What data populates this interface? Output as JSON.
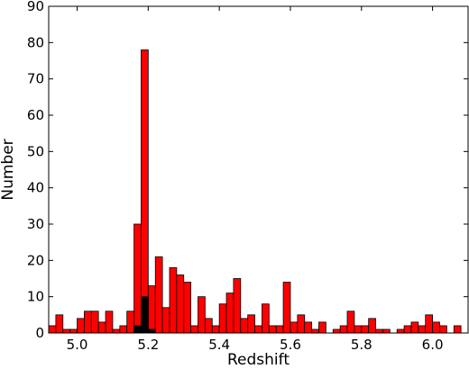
{
  "chart_data": {
    "type": "bar",
    "title": "",
    "xlabel": "Redshift",
    "ylabel": "Number",
    "xlim": [
      4.92,
      6.1
    ],
    "ylim": [
      0,
      90
    ],
    "bin_width": 0.02,
    "grid": false,
    "xticks": [
      5.0,
      5.2,
      5.4,
      5.6,
      5.8,
      6.0
    ],
    "xtick_labels": [
      "5.0",
      "5.2",
      "5.4",
      "5.6",
      "5.8",
      "6.0"
    ],
    "yticks": [
      0,
      10,
      20,
      30,
      40,
      50,
      60,
      70,
      80,
      90
    ],
    "ytick_labels": [
      "0",
      "10",
      "20",
      "30",
      "40",
      "50",
      "60",
      "70",
      "80",
      "90"
    ],
    "series": [
      {
        "color": "#ff0000",
        "bins": [
          {
            "x": 4.92,
            "y": 2
          },
          {
            "x": 4.94,
            "y": 5
          },
          {
            "x": 4.96,
            "y": 1
          },
          {
            "x": 4.98,
            "y": 1
          },
          {
            "x": 5.0,
            "y": 4
          },
          {
            "x": 5.02,
            "y": 6
          },
          {
            "x": 5.04,
            "y": 6
          },
          {
            "x": 5.06,
            "y": 3
          },
          {
            "x": 5.08,
            "y": 6
          },
          {
            "x": 5.1,
            "y": 1
          },
          {
            "x": 5.12,
            "y": 2
          },
          {
            "x": 5.14,
            "y": 6
          },
          {
            "x": 5.16,
            "y": 30
          },
          {
            "x": 5.18,
            "y": 78
          },
          {
            "x": 5.2,
            "y": 13
          },
          {
            "x": 5.22,
            "y": 21
          },
          {
            "x": 5.24,
            "y": 7
          },
          {
            "x": 5.26,
            "y": 18
          },
          {
            "x": 5.28,
            "y": 16
          },
          {
            "x": 5.3,
            "y": 14
          },
          {
            "x": 5.32,
            "y": 2
          },
          {
            "x": 5.34,
            "y": 10
          },
          {
            "x": 5.36,
            "y": 4
          },
          {
            "x": 5.38,
            "y": 2
          },
          {
            "x": 5.4,
            "y": 8
          },
          {
            "x": 5.42,
            "y": 11
          },
          {
            "x": 5.44,
            "y": 15
          },
          {
            "x": 5.46,
            "y": 4
          },
          {
            "x": 5.48,
            "y": 5
          },
          {
            "x": 5.5,
            "y": 2
          },
          {
            "x": 5.52,
            "y": 8
          },
          {
            "x": 5.54,
            "y": 2
          },
          {
            "x": 5.56,
            "y": 2
          },
          {
            "x": 5.58,
            "y": 14
          },
          {
            "x": 5.6,
            "y": 3
          },
          {
            "x": 5.62,
            "y": 5
          },
          {
            "x": 5.64,
            "y": 3
          },
          {
            "x": 5.66,
            "y": 1
          },
          {
            "x": 5.68,
            "y": 3
          },
          {
            "x": 5.72,
            "y": 1
          },
          {
            "x": 5.74,
            "y": 2
          },
          {
            "x": 5.76,
            "y": 6
          },
          {
            "x": 5.78,
            "y": 2
          },
          {
            "x": 5.8,
            "y": 2
          },
          {
            "x": 5.82,
            "y": 4
          },
          {
            "x": 5.84,
            "y": 1
          },
          {
            "x": 5.86,
            "y": 1
          },
          {
            "x": 5.9,
            "y": 1
          },
          {
            "x": 5.92,
            "y": 2
          },
          {
            "x": 5.94,
            "y": 3
          },
          {
            "x": 5.96,
            "y": 2
          },
          {
            "x": 5.98,
            "y": 5
          },
          {
            "x": 6.0,
            "y": 3
          },
          {
            "x": 6.02,
            "y": 2
          },
          {
            "x": 6.06,
            "y": 2
          }
        ]
      },
      {
        "color": "#000000",
        "bins": [
          {
            "x": 5.16,
            "y": 2
          },
          {
            "x": 5.18,
            "y": 10
          },
          {
            "x": 5.2,
            "y": 1
          }
        ]
      }
    ]
  }
}
